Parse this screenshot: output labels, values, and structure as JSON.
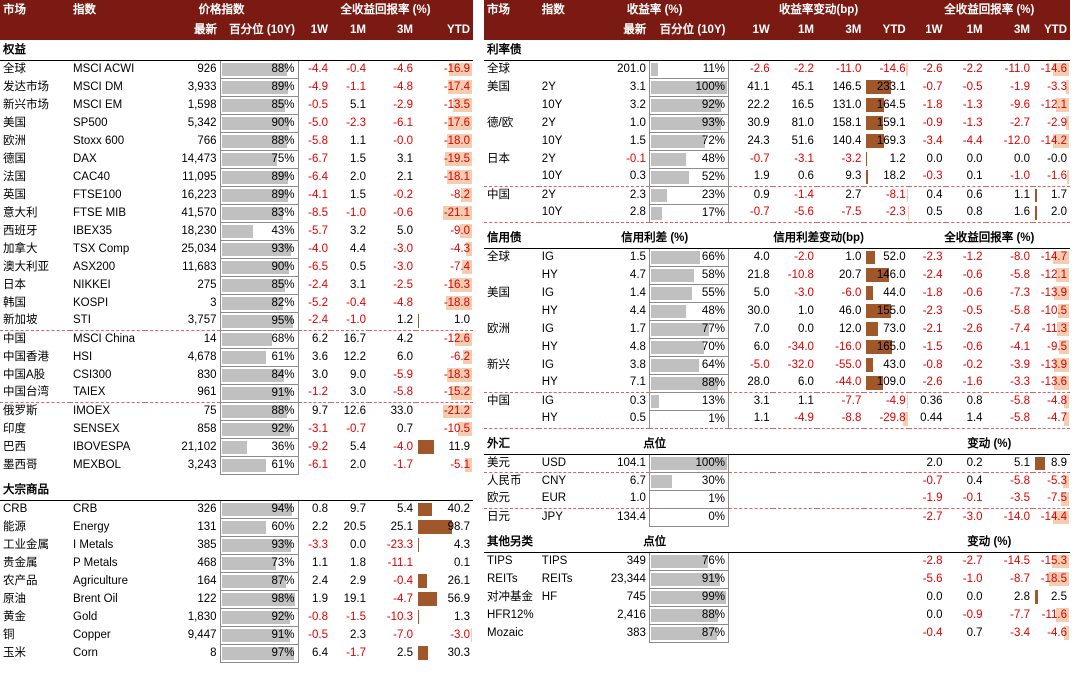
{
  "left": {
    "headers1": [
      "市场",
      "指数",
      "价格指数",
      "",
      "全收益回报率 (%)"
    ],
    "headers2": [
      "最新",
      "百分位 (10Y)",
      "1W",
      "1M",
      "3M",
      "YTD"
    ],
    "sections": [
      {
        "title": "权益",
        "rows": [
          [
            "全球",
            "MSCI ACWI",
            "926",
            "88%",
            "-4.4",
            "-0.4",
            "-4.6",
            "-16.9"
          ],
          [
            "发达市场",
            "MSCI DM",
            "3,933",
            "89%",
            "-4.9",
            "-1.1",
            "-4.8",
            "-17.4"
          ],
          [
            "新兴市场",
            "MSCI EM",
            "1,598",
            "85%",
            "-0.5",
            "5.1",
            "-2.9",
            "-13.5"
          ],
          [
            "美国",
            "SP500",
            "5,342",
            "90%",
            "-5.0",
            "-2.3",
            "-6.1",
            "-17.6"
          ],
          [
            "欧洲",
            "Stoxx 600",
            "766",
            "88%",
            "-5.8",
            "1.1",
            "-0.0",
            "-18.0"
          ],
          [
            "德国",
            "DAX",
            "14,473",
            "75%",
            "-6.7",
            "1.5",
            "3.1",
            "-19.5"
          ],
          [
            "法国",
            "CAC40",
            "11,095",
            "89%",
            "-6.4",
            "2.0",
            "2.1",
            "-18.1"
          ],
          [
            "英国",
            "FTSE100",
            "16,223",
            "89%",
            "-4.1",
            "1.5",
            "-0.2",
            "-8.2"
          ],
          [
            "意大利",
            "FTSE MIB",
            "41,570",
            "83%",
            "-8.5",
            "-1.0",
            "-0.6",
            "-21.1"
          ],
          [
            "西班牙",
            "IBEX35",
            "18,230",
            "43%",
            "-5.7",
            "3.2",
            "5.0",
            "-9.0"
          ],
          [
            "加拿大",
            "TSX Comp",
            "25,034",
            "93%",
            "-4.0",
            "4.4",
            "-3.0",
            "-4.3"
          ],
          [
            "澳大利亚",
            "ASX200",
            "11,683",
            "90%",
            "-6.5",
            "0.5",
            "-3.0",
            "-7.4"
          ],
          [
            "日本",
            "NIKKEI",
            "275",
            "85%",
            "-2.4",
            "3.1",
            "-2.5",
            "-16.3"
          ],
          [
            "韩国",
            "KOSPI",
            "3",
            "82%",
            "-5.2",
            "-0.4",
            "-4.8",
            "-18.8"
          ],
          [
            "新加坡",
            "STI",
            "3,757",
            "95%",
            "-2.4",
            "-1.0",
            "1.2",
            "1.0"
          ],
          [
            "中国",
            "MSCI China",
            "14",
            "68%",
            "6.2",
            "16.7",
            "4.2",
            "-12.6"
          ],
          [
            "中国香港",
            "HSI",
            "4,678",
            "61%",
            "3.6",
            "12.2",
            "6.0",
            "-6.2"
          ],
          [
            "中国A股",
            "CSI300",
            "830",
            "84%",
            "3.0",
            "9.0",
            "-5.9",
            "-18.3"
          ],
          [
            "中国台湾",
            "TAIEX",
            "961",
            "91%",
            "-1.2",
            "3.0",
            "-5.8",
            "-15.2"
          ],
          [
            "俄罗斯",
            "IMOEX",
            "75",
            "88%",
            "9.7",
            "12.6",
            "33.0",
            "-21.2"
          ],
          [
            "印度",
            "SENSEX",
            "858",
            "92%",
            "-3.1",
            "-0.7",
            "0.7",
            "-10.5"
          ],
          [
            "巴西",
            "IBOVESPA",
            "21,102",
            "36%",
            "-9.2",
            "5.4",
            "-4.0",
            "11.9"
          ],
          [
            "墨西哥",
            "MEXBOL",
            "3,243",
            "61%",
            "-6.1",
            "2.0",
            "-1.7",
            "-5.1"
          ]
        ]
      },
      {
        "title": "大宗商品",
        "rows": [
          [
            "CRB",
            "CRB",
            "326",
            "94%",
            "0.8",
            "9.7",
            "5.4",
            "40.2"
          ],
          [
            "能源",
            "Energy",
            "131",
            "60%",
            "2.2",
            "20.5",
            "25.1",
            "98.7"
          ],
          [
            "工业金属",
            "I Metals",
            "385",
            "93%",
            "-3.3",
            "0.0",
            "-23.3",
            "4.3"
          ],
          [
            "贵金属",
            "P Metals",
            "468",
            "73%",
            "1.1",
            "1.8",
            "-11.1",
            "0.1"
          ],
          [
            "农产品",
            "Agriculture",
            "164",
            "87%",
            "2.4",
            "2.9",
            "-0.4",
            "26.1"
          ],
          [
            "原油",
            "Brent Oil",
            "122",
            "98%",
            "1.9",
            "19.1",
            "-4.7",
            "56.9"
          ],
          [
            "黄金",
            "Gold",
            "1,830",
            "92%",
            "-0.8",
            "-1.5",
            "-10.3",
            "1.3"
          ],
          [
            "铜",
            "Copper",
            "9,447",
            "91%",
            "-0.5",
            "2.3",
            "-7.0",
            "-3.0"
          ],
          [
            "玉米",
            "Corn",
            "8",
            "97%",
            "6.4",
            "-1.7",
            "2.5",
            "30.3"
          ]
        ]
      }
    ]
  },
  "right": {
    "headers1": [
      "市场",
      "指数",
      "收益率 (%)",
      "",
      "收益率变动(bp)",
      "",
      "全收益回报率 (%)"
    ],
    "headers2": [
      "最新",
      "百分位 (10Y)",
      "1W",
      "1M",
      "3M",
      "YTD",
      "1W",
      "1M",
      "3M",
      "YTD"
    ],
    "rates": {
      "title": "利率债",
      "rows": [
        [
          "全球",
          "",
          "201.0",
          "11%",
          "-2.6",
          "-2.2",
          "-11.0",
          "-14.6",
          "-2.6",
          "-2.2",
          "-11.0",
          "-14.6"
        ],
        [
          "美国",
          "2Y",
          "3.1",
          "100%",
          "41.1",
          "45.1",
          "146.5",
          "233.1",
          "-0.7",
          "-0.5",
          "-1.9",
          "-3.3"
        ],
        [
          "",
          "10Y",
          "3.2",
          "92%",
          "22.2",
          "16.5",
          "131.0",
          "164.5",
          "-1.8",
          "-1.3",
          "-9.6",
          "-12.1"
        ],
        [
          "德/欧",
          "2Y",
          "1.0",
          "93%",
          "30.9",
          "81.0",
          "158.1",
          "159.1",
          "-0.9",
          "-1.3",
          "-2.7",
          "-2.9"
        ],
        [
          "",
          "10Y",
          "1.5",
          "72%",
          "24.3",
          "51.6",
          "140.4",
          "169.3",
          "-3.4",
          "-4.4",
          "-12.0",
          "-14.2"
        ],
        [
          "日本",
          "2Y",
          "-0.1",
          "48%",
          "-0.7",
          "-3.1",
          "-3.2",
          "1.2",
          "0.0",
          "0.0",
          "0.0",
          "-0.0"
        ],
        [
          "",
          "10Y",
          "0.3",
          "52%",
          "1.9",
          "0.6",
          "9.3",
          "18.2",
          "-0.3",
          "0.1",
          "-1.0",
          "-1.6"
        ],
        [
          "中国",
          "2Y",
          "2.3",
          "23%",
          "0.9",
          "-1.4",
          "2.7",
          "-8.1",
          "0.4",
          "0.6",
          "1.1",
          "1.7"
        ],
        [
          "",
          "10Y",
          "2.8",
          "17%",
          "-0.7",
          "-5.6",
          "-7.5",
          "-2.3",
          "0.5",
          "0.8",
          "1.6",
          "2.0"
        ]
      ]
    },
    "credit": {
      "title": "信用债",
      "sub1": "信用利差 (%)",
      "sub2": "信用利差变动(bp)",
      "sub3": "全收益回报率 (%)",
      "rows": [
        [
          "全球",
          "IG",
          "1.5",
          "66%",
          "4.0",
          "-2.0",
          "1.0",
          "52.0",
          "-2.3",
          "-1.2",
          "-8.0",
          "-14.7"
        ],
        [
          "",
          "HY",
          "4.7",
          "58%",
          "21.8",
          "-10.8",
          "20.7",
          "146.0",
          "-2.4",
          "-0.6",
          "-5.8",
          "-12.1"
        ],
        [
          "美国",
          "IG",
          "1.4",
          "55%",
          "5.0",
          "-3.0",
          "-6.0",
          "44.0",
          "-1.8",
          "-0.6",
          "-7.3",
          "-13.9"
        ],
        [
          "",
          "HY",
          "4.4",
          "48%",
          "30.0",
          "1.0",
          "46.0",
          "155.0",
          "-2.3",
          "-0.5",
          "-5.8",
          "-10.5"
        ],
        [
          "欧洲",
          "IG",
          "1.7",
          "77%",
          "7.0",
          "0.0",
          "12.0",
          "73.0",
          "-2.1",
          "-2.6",
          "-7.4",
          "-11.3"
        ],
        [
          "",
          "HY",
          "4.8",
          "70%",
          "6.0",
          "-34.0",
          "-16.0",
          "165.0",
          "-1.5",
          "-0.6",
          "-4.1",
          "-9.5"
        ],
        [
          "新兴",
          "IG",
          "3.8",
          "64%",
          "-5.0",
          "-32.0",
          "-55.0",
          "43.0",
          "-0.8",
          "-0.2",
          "-3.9",
          "-13.9"
        ],
        [
          "",
          "HY",
          "7.1",
          "88%",
          "28.0",
          "6.0",
          "-44.0",
          "109.0",
          "-2.6",
          "-1.6",
          "-3.3",
          "-13.6"
        ],
        [
          "中国",
          "IG",
          "0.3",
          "13%",
          "3.1",
          "1.1",
          "-7.7",
          "-4.9",
          "0.36",
          "0.8",
          "-5.8",
          "-4.8"
        ],
        [
          "",
          "HY",
          "0.5",
          "1%",
          "1.1",
          "-4.9",
          "-8.8",
          "-29.8",
          "0.44",
          "1.4",
          "-5.8",
          "-4.7"
        ]
      ]
    },
    "fx": {
      "title": "外汇",
      "sub1": "点位",
      "sub2": "变动 (%)",
      "rows": [
        [
          "美元",
          "USD",
          "104.1",
          "100%",
          "2.0",
          "0.2",
          "5.1",
          "8.9"
        ],
        [
          "人民币",
          "CNY",
          "6.7",
          "30%",
          "-0.7",
          "0.4",
          "-5.8",
          "-5.3"
        ],
        [
          "欧元",
          "EUR",
          "1.0",
          "1%",
          "-1.9",
          "-0.1",
          "-3.5",
          "-7.5"
        ],
        [
          "日元",
          "JPY",
          "134.4",
          "0%",
          "-2.7",
          "-3.0",
          "-14.0",
          "-14.4"
        ]
      ]
    },
    "alt": {
      "title": "其他另类",
      "sub1": "点位",
      "sub2": "变动 (%)",
      "rows": [
        [
          "TIPS",
          "TIPS",
          "349",
          "76%",
          "-2.8",
          "-2.7",
          "-14.5",
          "-15.3"
        ],
        [
          "REITs",
          "REITs",
          "23,344",
          "91%",
          "-5.6",
          "-1.0",
          "-8.7",
          "-18.5"
        ],
        [
          "对冲基金",
          "HF",
          "745",
          "99%",
          "0.0",
          "0.0",
          "2.8",
          "2.5"
        ],
        [
          "HFR12%",
          "",
          "2,416",
          "88%",
          "0.0",
          "-0.9",
          "-7.7",
          "-11.6"
        ],
        [
          "Mozaic",
          "",
          "383",
          "87%",
          "-0.4",
          "0.7",
          "-3.4",
          "-4.6"
        ]
      ]
    }
  },
  "colors": {
    "header": "#7a1a12",
    "negative": "#e00000",
    "bar_pos": "#a0582a",
    "bar_neg": "#f4ccb0",
    "pct_bar": "#c0c0c0"
  }
}
